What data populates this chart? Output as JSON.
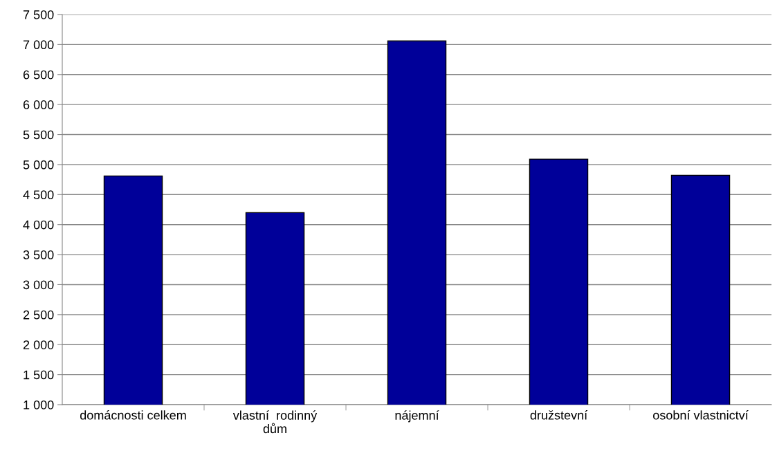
{
  "chart_data": {
    "type": "bar",
    "categories": [
      "domácnosti celkem",
      "vlastní  rodinný\ndům",
      "nájemní",
      "družstevní",
      "osobní vlastnictví"
    ],
    "values": [
      4810,
      4200,
      7060,
      5090,
      4820
    ],
    "color": "#000099",
    "ylim": [
      1000,
      7500
    ],
    "yticks": [
      {
        "value": 1000,
        "label": "1 000"
      },
      {
        "value": 1500,
        "label": "1 500"
      },
      {
        "value": 2000,
        "label": "2 000"
      },
      {
        "value": 2500,
        "label": "2 500"
      },
      {
        "value": 3000,
        "label": "3 000"
      },
      {
        "value": 3500,
        "label": "3 500"
      },
      {
        "value": 4000,
        "label": "4 000"
      },
      {
        "value": 4500,
        "label": "4 500"
      },
      {
        "value": 5000,
        "label": "5 000"
      },
      {
        "value": 5500,
        "label": "5 500"
      },
      {
        "value": 6000,
        "label": "6 000"
      },
      {
        "value": 6500,
        "label": "6 500"
      },
      {
        "value": 7000,
        "label": "7 000"
      },
      {
        "value": 7500,
        "label": "7 500"
      }
    ],
    "grid": "y"
  }
}
